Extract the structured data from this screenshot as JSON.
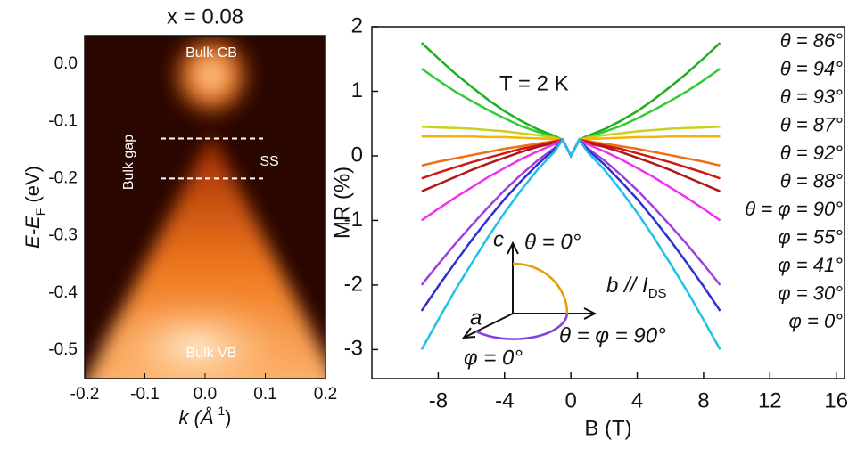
{
  "chart_data": [
    {
      "type": "image",
      "title": "x = 0.08",
      "y_label": [
        "E-E",
        "F",
        " (eV)"
      ],
      "x_label": [
        "k (Å",
        "-1",
        ")"
      ],
      "xlim": [
        -0.2,
        0.2
      ],
      "ylim": [
        -0.55,
        0.05
      ],
      "xticks": [
        -0.2,
        -0.1,
        {
          "value": 0,
          "label": "0.0"
        },
        0.1,
        0.2
      ],
      "yticks": [
        {
          "value": 0,
          "label": "0.0"
        },
        -0.1,
        -0.2,
        -0.3,
        -0.4,
        -0.5
      ],
      "dashed_lines": [
        -0.13,
        -0.2
      ],
      "annotations": [
        "Bulk CB",
        "Bulk gap",
        "SS",
        "Bulk VB"
      ]
    },
    {
      "type": "line",
      "y_label": "MR (%)",
      "x_label": "B (T)",
      "annotation": "T = 2 K",
      "inset": {
        "c": "c",
        "theta0": "θ = 0°",
        "b": "b // I",
        "b_sub": "DS",
        "a": "a",
        "theta90": "θ = φ = 90°",
        "phi0": "φ = 0°"
      },
      "xlim": [
        -12,
        16.5
      ],
      "ylim": [
        -3.45,
        2
      ],
      "xticks": [
        -8,
        -4,
        0,
        4,
        8,
        12,
        16
      ],
      "yticks": [
        -3,
        -2,
        -1,
        0,
        1,
        2
      ],
      "x": [
        -9,
        -8,
        -7,
        -6,
        -5,
        -4,
        -3,
        -2,
        -1,
        -0.5,
        0,
        0.5,
        1,
        2,
        3,
        4,
        5,
        6,
        7,
        8,
        9
      ],
      "series": [
        {
          "name": "θ = 86°",
          "color": "#1fae1f",
          "values": [
            1.75,
            1.51,
            1.28,
            1.07,
            0.87,
            0.69,
            0.54,
            0.41,
            0.31,
            0.25,
            0,
            0.25,
            0.31,
            0.41,
            0.54,
            0.69,
            0.87,
            1.07,
            1.28,
            1.51,
            1.75
          ]
        },
        {
          "name": "θ = 94°",
          "color": "#33cc33",
          "values": [
            1.35,
            1.17,
            1.0,
            0.85,
            0.71,
            0.58,
            0.46,
            0.37,
            0.29,
            0.25,
            0,
            0.25,
            0.29,
            0.37,
            0.46,
            0.58,
            0.71,
            0.85,
            1.0,
            1.17,
            1.35
          ]
        },
        {
          "name": "θ = 93°",
          "color": "#c8d21e",
          "values": [
            0.45,
            0.44,
            0.43,
            0.42,
            0.4,
            0.38,
            0.35,
            0.32,
            0.28,
            0.25,
            0,
            0.25,
            0.28,
            0.32,
            0.35,
            0.38,
            0.4,
            0.42,
            0.43,
            0.44,
            0.45
          ]
        },
        {
          "name": "θ = 87°",
          "color": "#f5b400",
          "values": [
            0.3,
            0.3,
            0.3,
            0.3,
            0.29,
            0.29,
            0.28,
            0.27,
            0.26,
            0.25,
            0,
            0.25,
            0.26,
            0.27,
            0.28,
            0.29,
            0.29,
            0.3,
            0.3,
            0.3,
            0.3
          ]
        },
        {
          "name": "θ = 92°",
          "color": "#f07010",
          "values": [
            -0.15,
            -0.09,
            -0.04,
            0.01,
            0.06,
            0.11,
            0.15,
            0.19,
            0.23,
            0.25,
            0,
            0.25,
            0.23,
            0.19,
            0.15,
            0.11,
            0.06,
            0.01,
            -0.04,
            -0.09,
            -0.15
          ]
        },
        {
          "name": "θ = 88°",
          "color": "#d01818",
          "values": [
            -0.35,
            -0.26,
            -0.18,
            -0.1,
            -0.03,
            0.04,
            0.11,
            0.16,
            0.22,
            0.25,
            0,
            0.25,
            0.22,
            0.16,
            0.11,
            0.04,
            -0.03,
            -0.1,
            -0.18,
            -0.26,
            -0.35
          ]
        },
        {
          "name": "θ = φ = 90°",
          "color": "#b01818",
          "values": [
            -0.55,
            -0.44,
            -0.33,
            -0.22,
            -0.12,
            -0.03,
            0.06,
            0.14,
            0.2,
            0.25,
            0,
            0.25,
            0.2,
            0.14,
            0.06,
            -0.03,
            -0.12,
            -0.22,
            -0.33,
            -0.44,
            -0.55
          ]
        },
        {
          "name": "φ = 55°",
          "color": "#f030f0",
          "values": [
            -1.0,
            -0.82,
            -0.65,
            -0.49,
            -0.33,
            -0.19,
            -0.05,
            0.07,
            0.18,
            0.25,
            0,
            0.25,
            0.18,
            0.07,
            -0.05,
            -0.19,
            -0.33,
            -0.49,
            -0.65,
            -0.82,
            -1.0
          ]
        },
        {
          "name": "φ = 41°",
          "color": "#a040e0",
          "values": [
            -2.0,
            -1.68,
            -1.37,
            -1.08,
            -0.8,
            -0.53,
            -0.29,
            -0.07,
            0.12,
            0.25,
            0,
            0.25,
            0.12,
            -0.07,
            -0.29,
            -0.53,
            -0.8,
            -1.08,
            -1.37,
            -1.68,
            -2.0
          ]
        },
        {
          "name": "φ = 30°",
          "color": "#3030d0",
          "values": [
            -2.4,
            -2.02,
            -1.66,
            -1.31,
            -0.98,
            -0.67,
            -0.39,
            -0.13,
            0.1,
            0.25,
            0,
            0.25,
            0.1,
            -0.13,
            -0.39,
            -0.67,
            -0.98,
            -1.31,
            -1.66,
            -2.02,
            -2.4
          ]
        },
        {
          "name": "φ =  0°",
          "color": "#20c0e8",
          "values": [
            -3.0,
            -2.54,
            -2.09,
            -1.67,
            -1.26,
            -0.88,
            -0.53,
            -0.21,
            0.06,
            0.25,
            0,
            0.25,
            0.06,
            -0.21,
            -0.53,
            -0.88,
            -1.26,
            -1.67,
            -2.09,
            -2.54,
            -3.0
          ]
        }
      ]
    }
  ]
}
